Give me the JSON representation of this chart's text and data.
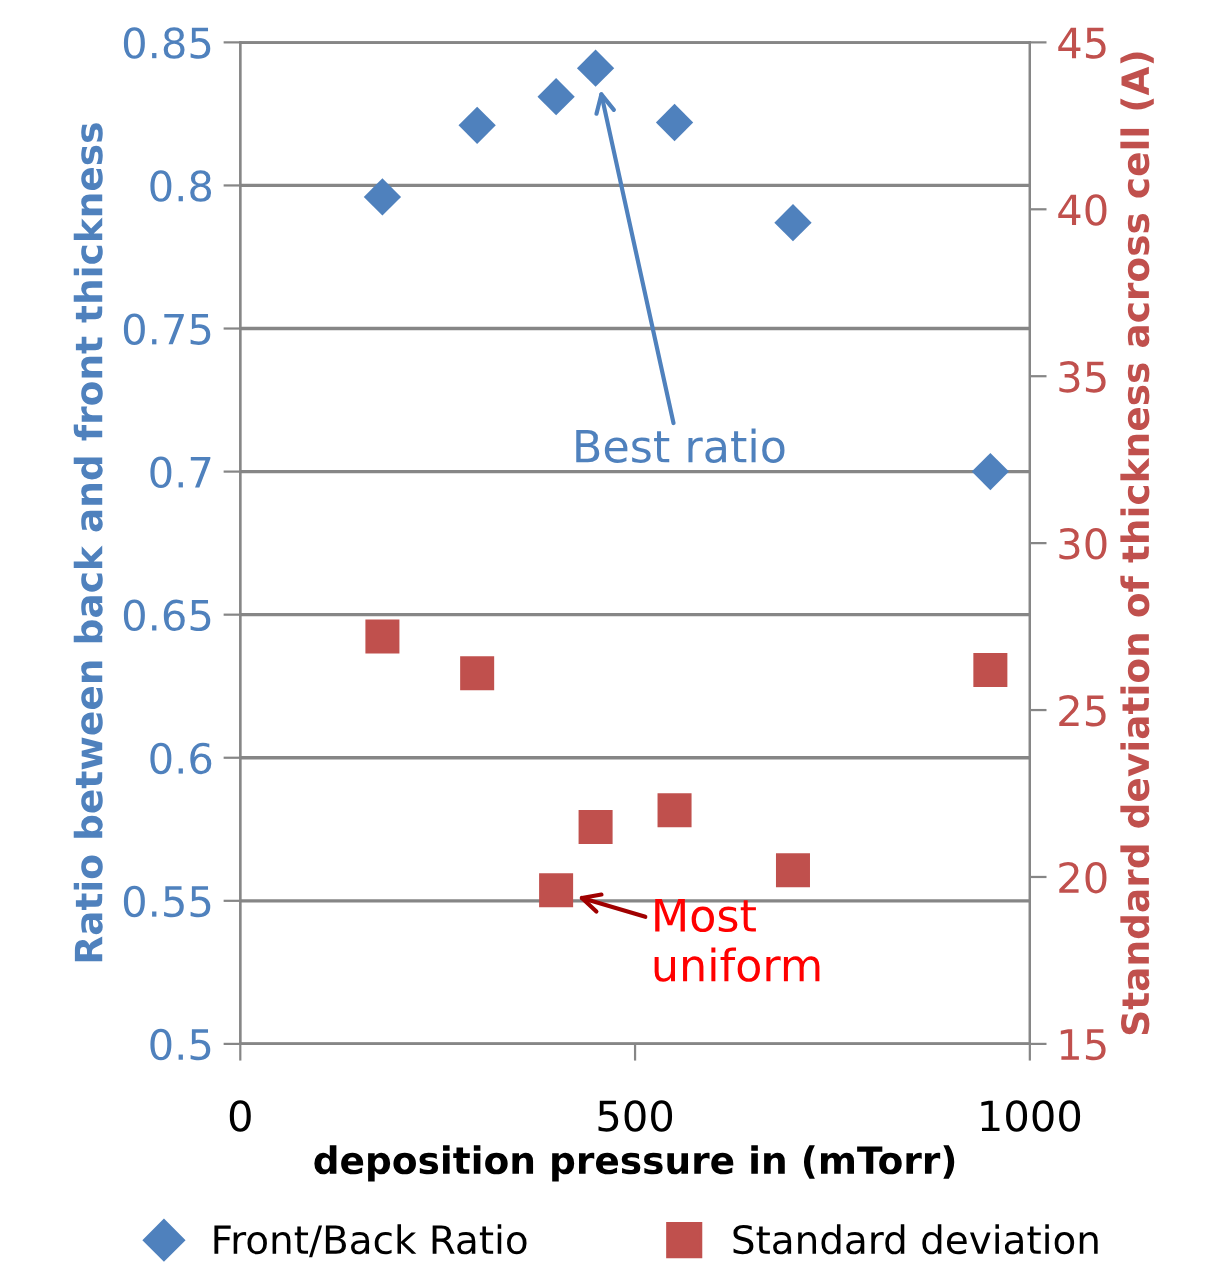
{
  "chart_data": {
    "type": "scatter",
    "xlabel": "deposition pressure in (mTorr)",
    "ylabel": "Ratio between back and front thickness",
    "y2label": "Standard deviation of thickness across cell (A)",
    "x": [
      180,
      300,
      400,
      450,
      550,
      700,
      950
    ],
    "series": [
      {
        "name": "Front/Back Ratio",
        "color": "#4f81bd",
        "marker": "diamond",
        "values": [
          0.796,
          0.821,
          0.831,
          0.841,
          0.822,
          0.787,
          0.7
        ]
      },
      {
        "name": "Standard deviation",
        "color": "#c0504d",
        "marker": "square",
        "axis": "y2",
        "values": [
          27.2,
          26.1,
          19.6,
          21.5,
          22.0,
          20.2,
          26.2
        ]
      }
    ],
    "xlim": [
      0,
      1000
    ],
    "xticks": [
      0,
      500,
      1000
    ],
    "ylim": [
      0.5,
      0.85
    ],
    "yticks": [
      0.5,
      0.55,
      0.6,
      0.65,
      0.7,
      0.75,
      0.8,
      0.85
    ],
    "y2lim": [
      15,
      45
    ],
    "y2ticks": [
      15,
      20,
      25,
      30,
      35,
      40,
      45
    ],
    "grid": "y",
    "legend": "bottom",
    "annotations": [
      "Best ratio",
      "Most uniform"
    ]
  }
}
